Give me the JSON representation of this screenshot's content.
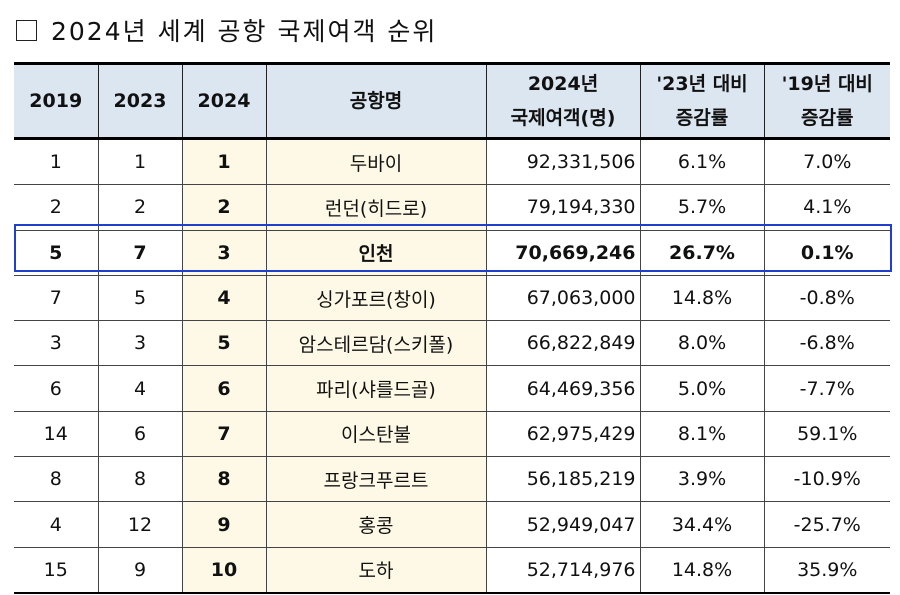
{
  "title": "2024년 세계 공항 국제여객 순위",
  "table": {
    "headers": {
      "y2019": "2019",
      "y2023": "2023",
      "y2024": "2024",
      "airport": "공항명",
      "pax_line1": "2024년",
      "pax_line2": "국제여객(명)",
      "chg23_line1": "'23년 대비",
      "chg23_line2": "증감률",
      "chg19_line1": "'19년 대비",
      "chg19_line2": "증감률"
    },
    "rows": [
      {
        "r2019": "1",
        "r2023": "1",
        "r2024": "1",
        "airport": "두바이",
        "pax": "92,331,506",
        "chg23": "6.1%",
        "chg19": "7.0%"
      },
      {
        "r2019": "2",
        "r2023": "2",
        "r2024": "2",
        "airport": "런던(히드로)",
        "pax": "79,194,330",
        "chg23": "5.7%",
        "chg19": "4.1%"
      },
      {
        "r2019": "5",
        "r2023": "7",
        "r2024": "3",
        "airport": "인천",
        "pax": "70,669,246",
        "chg23": "26.7%",
        "chg19": "0.1%"
      },
      {
        "r2019": "7",
        "r2023": "5",
        "r2024": "4",
        "airport": "싱가포르(창이)",
        "pax": "67,063,000",
        "chg23": "14.8%",
        "chg19": "-0.8%"
      },
      {
        "r2019": "3",
        "r2023": "3",
        "r2024": "5",
        "airport": "암스테르담(스키폴)",
        "pax": "66,822,849",
        "chg23": "8.0%",
        "chg19": "-6.8%"
      },
      {
        "r2019": "6",
        "r2023": "4",
        "r2024": "6",
        "airport": "파리(샤를드골)",
        "pax": "64,469,356",
        "chg23": "5.0%",
        "chg19": "-7.7%"
      },
      {
        "r2019": "14",
        "r2023": "6",
        "r2024": "7",
        "airport": "이스탄불",
        "pax": "62,975,429",
        "chg23": "8.1%",
        "chg19": "59.1%"
      },
      {
        "r2019": "8",
        "r2023": "8",
        "r2024": "8",
        "airport": "프랑크푸르트",
        "pax": "56,185,219",
        "chg23": "3.9%",
        "chg19": "-10.9%"
      },
      {
        "r2019": "4",
        "r2023": "12",
        "r2024": "9",
        "airport": "홍콩",
        "pax": "52,949,047",
        "chg23": "34.4%",
        "chg19": "-25.7%"
      },
      {
        "r2019": "15",
        "r2023": "9",
        "r2024": "10",
        "airport": "도하",
        "pax": "52,714,976",
        "chg23": "14.8%",
        "chg19": "35.9%"
      }
    ]
  },
  "highlight_color": "#1f3fcc"
}
